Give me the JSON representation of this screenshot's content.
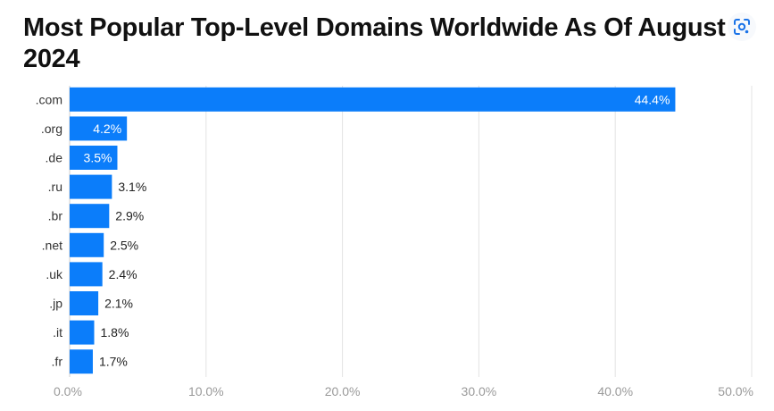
{
  "header": {
    "title": "Most Popular Top-Level Domains Worldwide As Of August 2024"
  },
  "icons": {
    "lens": "google-lens-icon"
  },
  "colors": {
    "bar": "#0b7dfa",
    "grid": "#e3e3e3",
    "label_inside": "#ffffff",
    "label_outside": "#222222"
  },
  "chart_data": {
    "type": "bar",
    "orientation": "horizontal",
    "title": "Most Popular Top-Level Domains Worldwide As Of August 2024",
    "categories": [
      ".com",
      ".org",
      ".de",
      ".ru",
      ".br",
      ".net",
      ".uk",
      ".jp",
      ".it",
      ".fr"
    ],
    "values": [
      44.4,
      4.2,
      3.5,
      3.1,
      2.9,
      2.5,
      2.4,
      2.1,
      1.8,
      1.7
    ],
    "value_labels": [
      "44.4%",
      "4.2%",
      "3.5%",
      "3.1%",
      "2.9%",
      "2.5%",
      "2.4%",
      "2.1%",
      "1.8%",
      "1.7%"
    ],
    "xticks": [
      0,
      10,
      20,
      30,
      40,
      50
    ],
    "xtick_labels": [
      "0.0%",
      "10.0%",
      "20.0%",
      "30.0%",
      "40.0%",
      "50.0%"
    ],
    "xlim": [
      0,
      50
    ],
    "xlabel": "",
    "ylabel": "",
    "grid": "vertical",
    "legend": "none"
  }
}
